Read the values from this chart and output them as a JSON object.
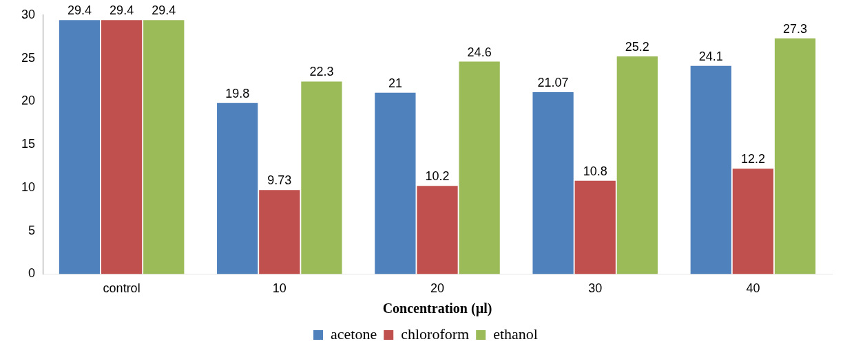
{
  "chart_data": {
    "type": "bar",
    "xlabel": "Concentration (µl)",
    "categories": [
      "control",
      "10",
      "20",
      "30",
      "40"
    ],
    "series": [
      {
        "name": "acetone",
        "color": "#4f81bd",
        "values": [
          29.4,
          19.8,
          21,
          21.07,
          24.1
        ]
      },
      {
        "name": "chloroform",
        "color": "#c0504d",
        "values": [
          29.4,
          9.73,
          10.2,
          10.8,
          12.2
        ]
      },
      {
        "name": "ethanol",
        "color": "#9bbb59",
        "values": [
          29.4,
          22.3,
          24.6,
          25.2,
          27.3
        ]
      }
    ],
    "ylim": [
      0,
      30
    ],
    "yticks": [
      0,
      5,
      10,
      15,
      20,
      25,
      30
    ],
    "grid": false,
    "legend": "bottom",
    "data_labels": true
  }
}
